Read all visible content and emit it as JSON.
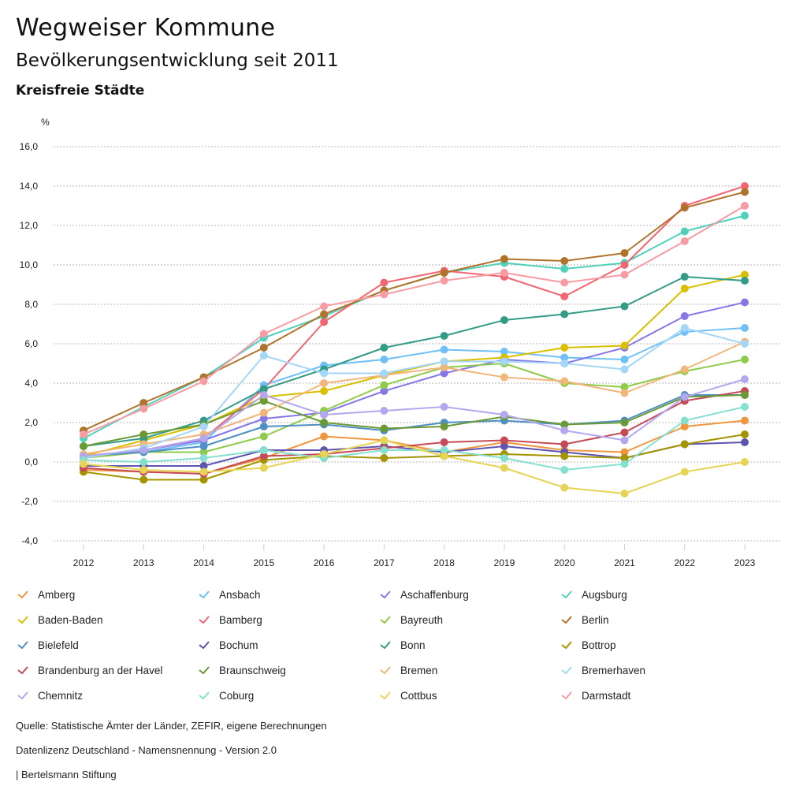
{
  "header": {
    "title": "Wegweiser Kommune",
    "subtitle": "Bevölkerungsentwicklung seit 2011",
    "group": "Kreisfreie Städte"
  },
  "footer": {
    "source": "Quelle: Statistische Ämter der Länder, ZEFIR, eigene Berechnungen",
    "license": "Datenlizenz Deutschland - Namensnennung - Version 2.0",
    "publisher": "| Bertelsmann Stiftung"
  },
  "chart_data": {
    "type": "line",
    "title": "Bevölkerungsentwicklung seit 2011",
    "xlabel": "",
    "ylabel": "%",
    "x": [
      "2012",
      "2013",
      "2014",
      "2015",
      "2016",
      "2017",
      "2018",
      "2019",
      "2020",
      "2021",
      "2022",
      "2023"
    ],
    "ylim": [
      -4,
      16
    ],
    "yticks": [
      16,
      14,
      12,
      10,
      8,
      6,
      4,
      2,
      0,
      -2,
      -4
    ],
    "ytick_labels": [
      "16,0",
      "14,0",
      "12,0",
      "10,0",
      "8,0",
      "6,0",
      "4,0",
      "2,0",
      "0,0",
      "-2,0",
      "-4,0"
    ],
    "grid": true,
    "legend_position": "bottom",
    "series": [
      {
        "name": "Amberg",
        "color": "#f0963c",
        "values": [
          -0.4,
          -0.5,
          -0.6,
          0.2,
          1.3,
          1.1,
          0.5,
          1.0,
          0.6,
          0.5,
          1.8,
          2.1
        ]
      },
      {
        "name": "Ansbach",
        "color": "#6ec0f7",
        "values": [
          0.3,
          0.5,
          1.0,
          3.9,
          4.9,
          5.2,
          5.7,
          5.6,
          5.3,
          5.2,
          6.6,
          6.8
        ]
      },
      {
        "name": "Aschaffenburg",
        "color": "#8677e8",
        "values": [
          0.3,
          0.6,
          1.1,
          2.2,
          2.5,
          3.6,
          4.5,
          5.2,
          5.0,
          5.8,
          7.4,
          8.1
        ]
      },
      {
        "name": "Augsburg",
        "color": "#4fd1bb",
        "values": [
          1.2,
          2.8,
          4.3,
          6.3,
          7.4,
          8.7,
          9.6,
          10.1,
          9.8,
          10.1,
          11.7,
          12.5
        ]
      },
      {
        "name": "Baden-Baden",
        "color": "#d9bf00",
        "values": [
          0.3,
          1.1,
          1.9,
          3.3,
          3.6,
          4.4,
          5.1,
          5.3,
          5.8,
          5.9,
          8.8,
          9.5
        ]
      },
      {
        "name": "Bamberg",
        "color": "#f26672",
        "values": [
          0.3,
          0.6,
          1.2,
          3.7,
          7.1,
          9.1,
          9.7,
          9.4,
          8.4,
          10.0,
          13.0,
          14.0
        ]
      },
      {
        "name": "Bayreuth",
        "color": "#8fcb4b",
        "values": [
          0.2,
          0.5,
          0.5,
          1.3,
          2.6,
          3.9,
          4.8,
          5.0,
          4.0,
          3.8,
          4.6,
          5.2
        ]
      },
      {
        "name": "Berlin",
        "color": "#b0732c",
        "values": [
          1.6,
          3.0,
          4.3,
          5.8,
          7.5,
          8.7,
          9.6,
          10.3,
          10.2,
          10.6,
          12.9,
          13.7
        ]
      },
      {
        "name": "Bielefeld",
        "color": "#4f90c4",
        "values": [
          0.3,
          0.5,
          0.8,
          1.8,
          1.9,
          1.6,
          2.0,
          2.1,
          1.9,
          2.1,
          3.4,
          3.4
        ]
      },
      {
        "name": "Bochum",
        "color": "#5e55b0",
        "values": [
          -0.2,
          -0.2,
          -0.2,
          0.6,
          0.6,
          0.8,
          0.5,
          0.8,
          0.5,
          0.2,
          0.9,
          1.0
        ]
      },
      {
        "name": "Bonn",
        "color": "#339c86",
        "values": [
          0.8,
          1.2,
          2.1,
          3.7,
          4.7,
          5.8,
          6.4,
          7.2,
          7.5,
          7.9,
          9.4,
          9.2
        ]
      },
      {
        "name": "Bottrop",
        "color": "#a39400",
        "values": [
          -0.5,
          -0.9,
          -0.9,
          0.1,
          0.3,
          0.2,
          0.3,
          0.4,
          0.3,
          0.2,
          0.9,
          1.4
        ]
      },
      {
        "name": "Brandenburg an der Havel",
        "color": "#c44a57",
        "values": [
          -0.3,
          -0.5,
          -0.6,
          0.3,
          0.4,
          0.7,
          1.0,
          1.1,
          0.9,
          1.5,
          3.1,
          3.6
        ]
      },
      {
        "name": "Braunschweig",
        "color": "#6a9a35",
        "values": [
          0.8,
          1.4,
          1.9,
          3.1,
          2.0,
          1.7,
          1.8,
          2.3,
          1.9,
          2.0,
          3.3,
          3.4
        ]
      },
      {
        "name": "Bremen",
        "color": "#f2b57a",
        "values": [
          0.4,
          0.9,
          1.4,
          2.5,
          4.0,
          4.4,
          4.8,
          4.3,
          4.1,
          3.5,
          4.7,
          6.1
        ]
      },
      {
        "name": "Bremerhaven",
        "color": "#a3d6f7",
        "values": [
          0.2,
          0.7,
          1.8,
          5.4,
          4.5,
          4.5,
          5.1,
          5.1,
          5.0,
          4.7,
          6.8,
          6.0
        ]
      },
      {
        "name": "Chemnitz",
        "color": "#b3a8f0",
        "values": [
          0.3,
          0.6,
          1.2,
          3.4,
          2.4,
          2.6,
          2.8,
          2.4,
          1.6,
          1.1,
          3.3,
          4.2
        ]
      },
      {
        "name": "Coburg",
        "color": "#85e0cf",
        "values": [
          0.1,
          0.0,
          0.2,
          0.6,
          0.2,
          0.6,
          0.6,
          0.2,
          -0.4,
          -0.1,
          2.1,
          2.8
        ]
      },
      {
        "name": "Cottbus",
        "color": "#e6d454",
        "values": [
          -0.1,
          -0.4,
          -0.5,
          -0.3,
          0.4,
          1.1,
          0.3,
          -0.3,
          -1.3,
          -1.6,
          -0.5,
          0.0
        ]
      },
      {
        "name": "Darmstadt",
        "color": "#f79ca3",
        "values": [
          1.4,
          2.7,
          4.1,
          6.5,
          7.9,
          8.5,
          9.2,
          9.6,
          9.1,
          9.5,
          11.2,
          13.0
        ]
      }
    ]
  }
}
